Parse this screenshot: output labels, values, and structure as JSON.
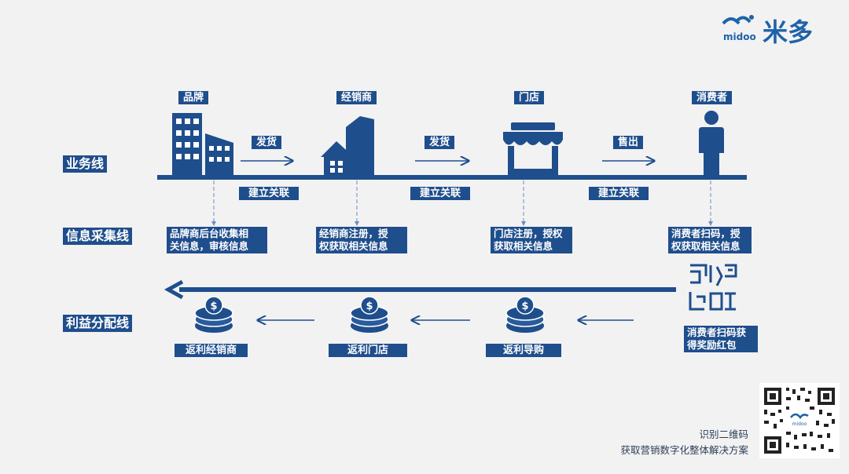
{
  "logo": {
    "latin": "midoo",
    "cn": "米多"
  },
  "actors": {
    "brand": "品牌",
    "dealer": "经销商",
    "store": "门店",
    "consumer": "消费者"
  },
  "flows": {
    "ship1": "发货",
    "ship2": "发货",
    "sell": "售出"
  },
  "links": {
    "l1": "建立关联",
    "l2": "建立关联",
    "l3": "建立关联"
  },
  "lanes": {
    "business": "业务线",
    "info": "信息采集线",
    "profit": "利益分配线"
  },
  "info": {
    "brand": [
      "品牌商后台收集相",
      "关信息，审核信息"
    ],
    "dealer": [
      "经销商注册，授",
      "权获取相关信息"
    ],
    "store": [
      "门店注册，授权",
      "获取相关信息"
    ],
    "consumer": [
      "消费者扫码，授",
      "权获取相关信息"
    ]
  },
  "rewards": {
    "consumer": [
      "消费者扫码获",
      "得奖励红包"
    ],
    "guide": "返利导购",
    "store": "返利门店",
    "dealer": "返利经销商"
  },
  "footer": {
    "line1": "识别二维码",
    "line2": "获取营销数字化整体解决方案"
  },
  "colors": {
    "primary": "#1f4e8c",
    "background": "#f2f2f3"
  }
}
